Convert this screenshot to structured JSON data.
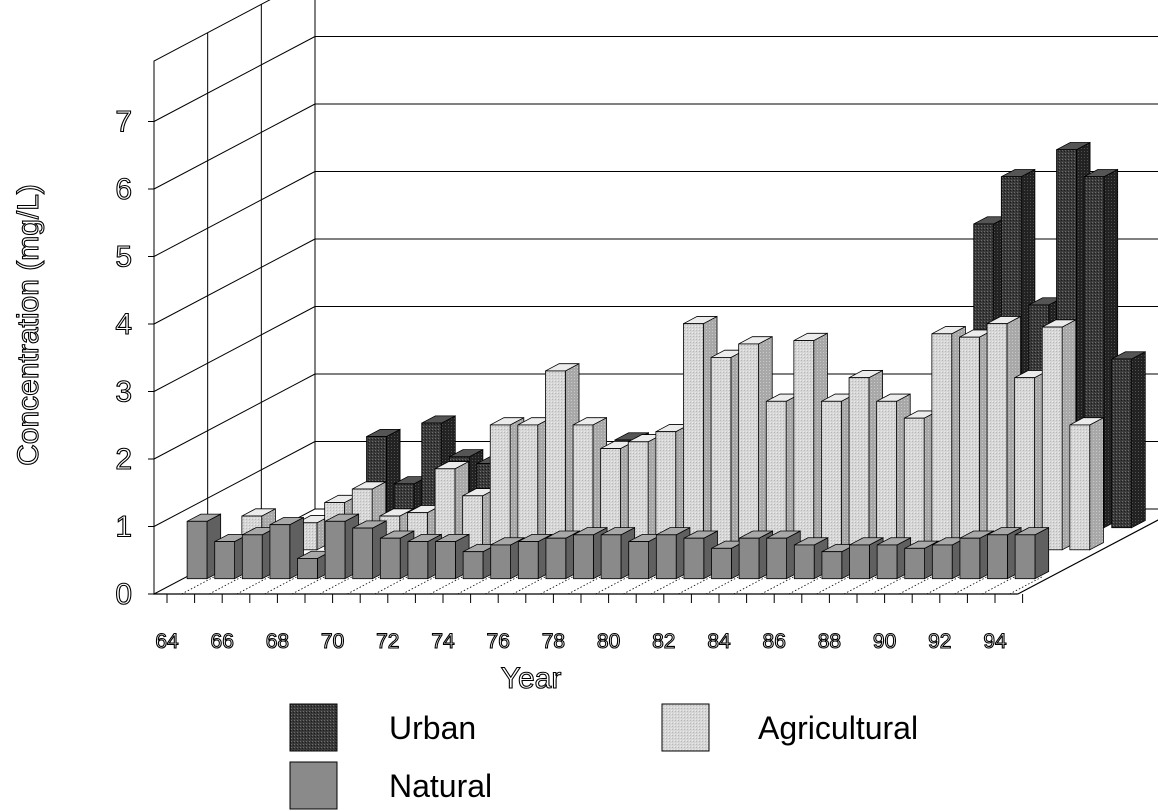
{
  "chart_data": {
    "type": "bar",
    "subtype": "3d-grouped",
    "title": "",
    "xlabel": "Year",
    "ylabel": "Concentration (mg/L)",
    "ylim": [
      0,
      7
    ],
    "yticks": [
      "0",
      "1",
      "2",
      "3",
      "4",
      "5",
      "6",
      "7"
    ],
    "xticks": [
      "64",
      "66",
      "68",
      "70",
      "72",
      "74",
      "76",
      "78",
      "80",
      "82",
      "84",
      "86",
      "88",
      "90",
      "92",
      "94"
    ],
    "categories": [
      "64",
      "65",
      "66",
      "67",
      "68",
      "69",
      "70",
      "71",
      "72",
      "73",
      "74",
      "75",
      "76",
      "77",
      "78",
      "79",
      "80",
      "81",
      "82",
      "83",
      "84",
      "85",
      "86",
      "87",
      "88",
      "89",
      "90",
      "91",
      "92",
      "93",
      "94"
    ],
    "grid": true,
    "legend_position": "bottom",
    "series": [
      {
        "name": "Urban",
        "color": "#3a3a3a",
        "values": [
          null,
          null,
          null,
          1.35,
          0.65,
          1.55,
          1.05,
          0.95,
          1.05,
          0.7,
          1.0,
          1.1,
          1.3,
          1.1,
          1.0,
          0.8,
          0.9,
          1.15,
          1.35,
          1.4,
          1.3,
          1.15,
          1.0,
          1.25,
          1.25,
          4.5,
          5.2,
          3.3,
          5.6,
          5.2,
          2.5
        ]
      },
      {
        "name": "Agricultural",
        "color": "#d2d2d2",
        "values": [
          0.5,
          0.2,
          0.4,
          0.7,
          0.9,
          0.5,
          0.55,
          1.2,
          0.8,
          1.85,
          1.85,
          2.65,
          1.85,
          1.5,
          1.6,
          1.75,
          3.35,
          2.85,
          3.05,
          2.2,
          3.1,
          2.2,
          2.55,
          2.2,
          1.95,
          3.2,
          3.15,
          3.35,
          2.55,
          3.3,
          1.85
        ]
      },
      {
        "name": "Natural",
        "color": "#8a8a8a",
        "values": [
          0.85,
          0.55,
          0.65,
          0.8,
          0.3,
          0.85,
          0.75,
          0.6,
          0.55,
          0.55,
          0.4,
          0.5,
          0.55,
          0.6,
          0.65,
          0.65,
          0.55,
          0.65,
          0.6,
          0.45,
          0.6,
          0.6,
          0.5,
          0.4,
          0.5,
          0.5,
          0.45,
          0.5,
          0.6,
          0.65,
          0.65
        ]
      }
    ]
  }
}
